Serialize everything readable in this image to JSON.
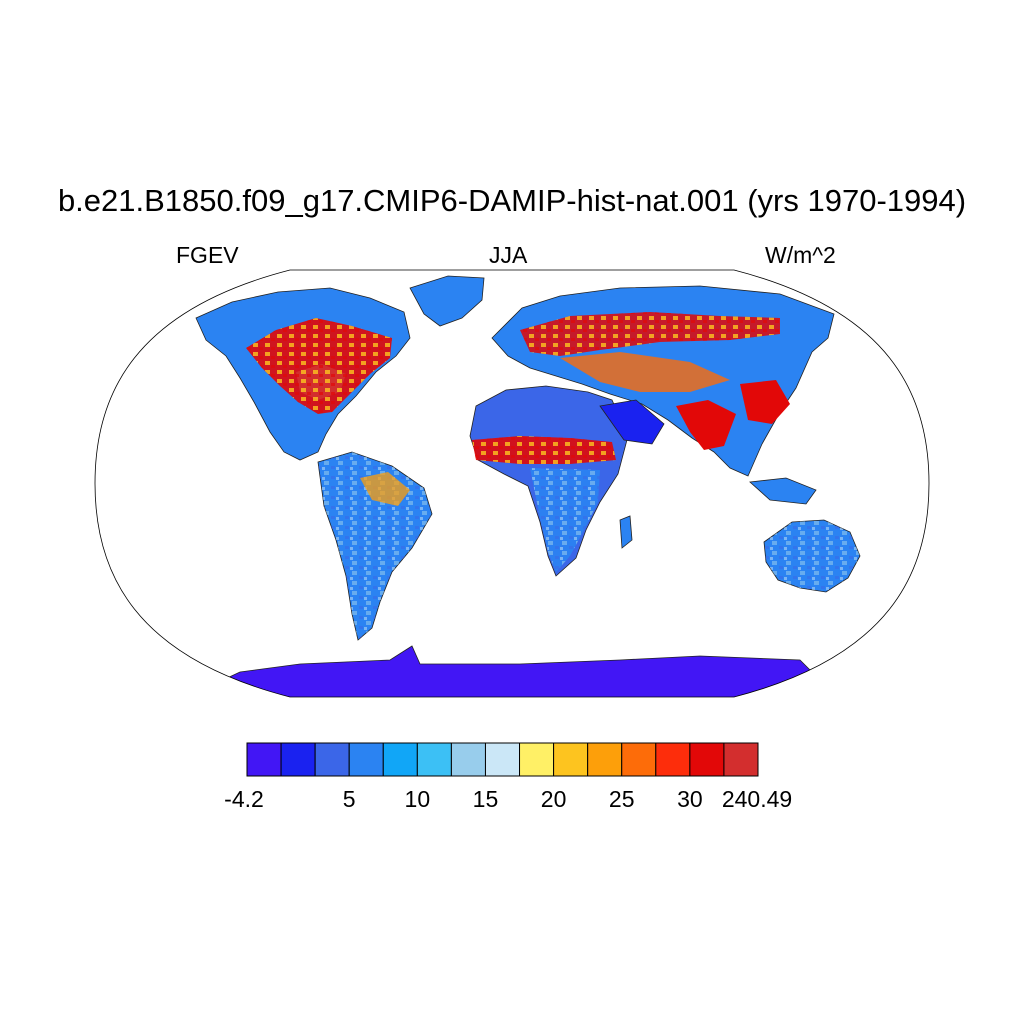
{
  "title": "b.e21.B1850.f09_g17.CMIP6-DAMIP-hist-nat.001 (yrs 1970-1994)",
  "left_label": "FGEV",
  "center_label": "JJA",
  "right_label": "W/m^2",
  "colorbar": {
    "colors": [
      "#4216f5",
      "#1a22f0",
      "#3b66e8",
      "#2b83f2",
      "#11a6f7",
      "#3cc0f5",
      "#98cdec",
      "#cbe7f7",
      "#fff066",
      "#fdc41f",
      "#fd9f0a",
      "#fd6c09",
      "#fd2d0b",
      "#e20808",
      "#d32e2e"
    ],
    "tick_labels": [
      "-4.2",
      "5",
      "10",
      "15",
      "20",
      "25",
      "30",
      "240.49"
    ]
  }
}
